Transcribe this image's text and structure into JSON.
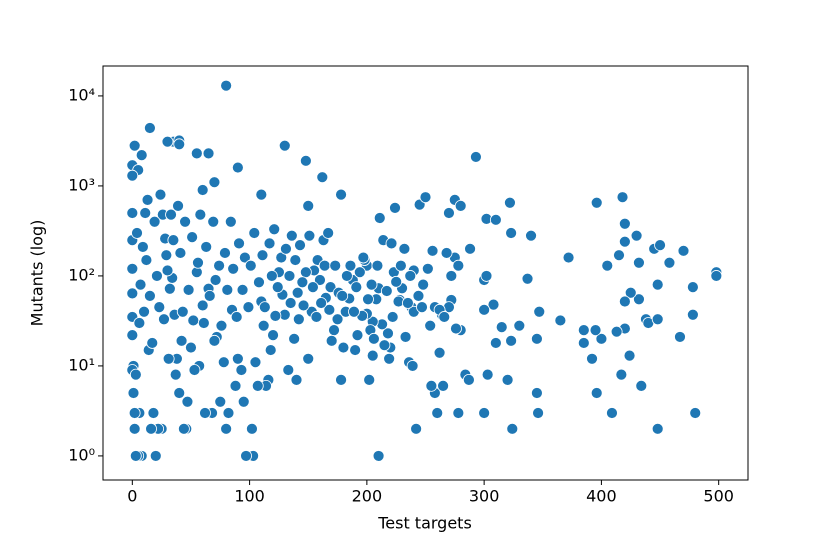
{
  "chart_data": {
    "type": "scatter",
    "xlabel": "Test targets",
    "ylabel": "Mutants (log)",
    "color": "#1f77b4",
    "ylog": true,
    "xlim": [
      -25,
      525
    ],
    "ylim": [
      0.54,
      21500
    ],
    "xticks": [
      0,
      100,
      200,
      300,
      400,
      500
    ],
    "yticks": [
      {
        "value": 1,
        "label": "10⁰"
      },
      {
        "value": 10,
        "label": "10¹"
      },
      {
        "value": 100,
        "label": "10²"
      },
      {
        "value": 1000,
        "label": "10³"
      },
      {
        "value": 10000,
        "label": "10⁴"
      }
    ],
    "x": [
      80,
      15,
      2,
      35,
      40,
      40,
      30,
      55,
      65,
      130,
      293,
      148,
      90,
      0,
      5,
      8,
      60,
      110,
      162,
      178,
      0,
      70,
      245,
      250,
      270,
      275,
      280,
      302,
      310,
      322,
      323,
      340,
      372,
      396,
      418,
      420,
      420,
      430,
      415,
      445,
      450,
      432,
      458,
      470,
      498,
      498,
      478,
      448,
      432,
      425,
      420,
      405,
      478,
      438,
      440,
      448,
      467,
      420,
      413,
      400,
      395,
      392,
      396,
      409,
      417,
      424,
      434,
      448,
      480,
      385,
      385,
      365,
      347,
      345,
      345,
      346,
      337,
      330,
      323,
      320,
      324,
      315,
      308,
      310,
      300,
      300,
      302,
      303,
      300,
      284,
      287,
      278,
      280,
      276,
      258,
      260,
      262,
      265,
      255,
      272,
      270,
      275,
      278,
      264,
      258,
      248,
      240,
      238,
      240,
      242,
      236,
      233,
      230,
      228,
      223,
      225,
      222,
      220,
      218,
      215,
      213,
      210,
      210,
      208,
      205,
      205,
      203,
      202,
      200,
      200,
      198,
      196,
      192,
      190,
      188,
      185,
      182,
      180,
      178,
      175,
      172,
      170,
      168,
      165,
      163,
      160,
      158,
      155,
      153,
      150,
      150,
      148,
      145,
      142,
      140,
      138,
      135,
      133,
      130,
      128,
      125,
      122,
      120,
      118,
      116,
      114,
      112,
      110,
      107,
      105,
      103,
      102,
      97,
      95,
      93,
      90,
      88,
      85,
      82,
      80,
      78,
      75,
      72,
      70,
      68,
      65,
      62,
      60,
      57,
      55,
      52,
      50,
      47,
      46,
      44,
      42,
      40,
      38,
      36,
      34,
      32,
      30,
      28,
      26,
      25,
      22,
      20,
      18,
      16,
      14,
      12,
      10,
      8,
      6,
      5,
      3,
      2,
      2,
      1,
      0,
      0,
      0,
      0,
      0,
      0,
      0,
      1,
      3,
      4,
      6,
      7,
      9,
      11,
      13,
      15,
      17,
      19,
      21,
      23,
      24,
      27,
      29,
      31,
      33,
      35,
      37,
      39,
      41,
      43,
      45,
      48,
      51,
      53,
      56,
      58,
      61,
      63,
      66,
      69,
      71,
      74,
      76,
      79,
      81,
      84,
      86,
      89,
      91,
      94,
      96,
      99,
      101,
      104,
      108,
      111,
      113,
      117,
      119,
      121,
      124,
      127,
      131,
      134,
      136,
      139,
      141,
      143,
      146,
      151,
      154,
      157,
      161,
      164,
      167,
      169,
      173,
      176,
      179,
      183,
      186,
      189,
      191,
      194,
      197,
      201,
      204,
      206,
      209,
      211,
      214,
      217,
      219,
      221,
      224,
      227,
      229,
      232,
      235,
      237,
      239,
      244,
      247,
      252,
      254,
      256,
      262,
      266,
      268,
      272,
      288
    ],
    "values": [
      13000,
      4400,
      2800,
      3100,
      3200,
      2900,
      3100,
      2300,
      2300,
      2800,
      2100,
      1900,
      1600,
      1700,
      1500,
      2200,
      900,
      800,
      1250,
      800,
      1300,
      1100,
      620,
      750,
      500,
      700,
      600,
      430,
      420,
      650,
      300,
      280,
      160,
      650,
      750,
      380,
      240,
      280,
      170,
      200,
      220,
      140,
      140,
      190,
      110,
      100,
      75,
      80,
      55,
      65,
      52,
      130,
      37,
      33,
      30,
      33,
      21,
      26,
      24,
      20,
      25,
      12,
      5,
      3,
      8,
      13,
      6,
      2,
      3,
      18,
      25,
      32,
      40,
      20,
      5,
      3,
      93,
      28,
      19,
      7,
      2,
      27,
      48,
      18,
      42,
      90,
      100,
      8,
      3,
      8,
      7,
      3,
      25,
      26,
      5,
      3,
      14,
      6,
      6,
      54,
      45,
      160,
      130,
      37,
      45,
      80,
      115,
      45,
      40,
      2,
      11,
      21,
      73,
      54,
      110,
      86,
      35,
      16,
      23,
      17,
      29,
      1,
      73,
      55,
      31,
      13,
      25,
      7,
      38,
      130,
      150,
      36,
      22,
      15,
      90,
      56,
      40,
      16,
      7,
      33,
      25,
      19,
      42,
      57,
      250,
      90,
      150,
      115,
      40,
      12,
      600,
      110,
      85,
      33,
      7,
      20,
      50,
      9,
      37,
      62,
      110,
      36,
      22,
      15,
      7,
      6,
      28,
      52,
      6,
      11,
      1,
      2,
      1,
      4,
      9,
      12,
      6,
      42,
      3,
      2,
      11,
      4,
      21,
      19,
      3,
      72,
      3,
      47,
      10,
      110,
      32,
      16,
      4,
      2,
      2,
      19,
      5,
      12,
      37,
      95,
      72,
      115,
      260,
      480,
      2,
      2,
      1,
      3,
      2,
      15,
      150,
      40,
      1,
      3,
      1,
      1,
      2,
      3,
      10,
      22,
      35,
      64,
      120,
      250,
      500,
      9,
      5,
      8,
      300,
      30,
      80,
      210,
      500,
      700,
      60,
      18,
      400,
      100,
      45,
      800,
      33,
      170,
      12,
      480,
      250,
      8,
      600,
      180,
      40,
      400,
      70,
      270,
      9,
      140,
      480,
      30,
      210,
      60,
      400,
      90,
      130,
      28,
      180,
      70,
      400,
      120,
      35,
      230,
      70,
      160,
      45,
      130,
      300,
      85,
      170,
      45,
      230,
      100,
      330,
      75,
      160,
      200,
      100,
      280,
      150,
      65,
      220,
      47,
      280,
      75,
      35,
      50,
      130,
      300,
      75,
      130,
      65,
      60,
      100,
      130,
      40,
      75,
      110,
      160,
      55,
      80,
      20,
      130,
      440,
      250,
      68,
      12,
      230,
      570,
      52,
      130,
      200,
      50,
      100,
      10,
      60,
      45,
      120,
      28,
      190,
      42,
      35,
      180,
      100,
      200
    ]
  }
}
